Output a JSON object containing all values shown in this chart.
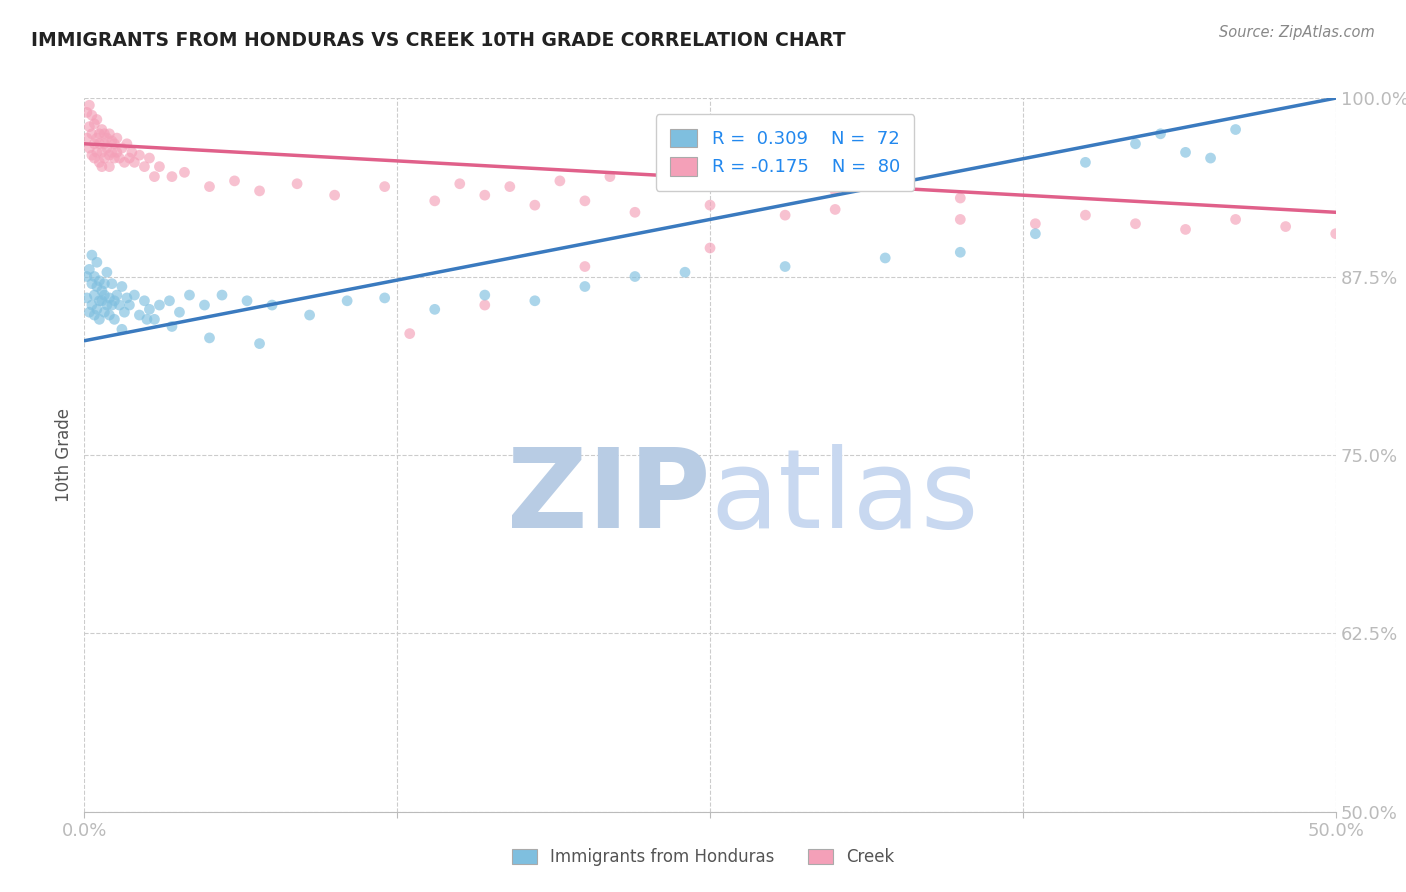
{
  "title": "IMMIGRANTS FROM HONDURAS VS CREEK 10TH GRADE CORRELATION CHART",
  "source": "Source: ZipAtlas.com",
  "ylabel": "10th Grade",
  "y_tick_labels": [
    "50.0%",
    "62.5%",
    "75.0%",
    "87.5%",
    "100.0%"
  ],
  "y_tick_values": [
    0.5,
    0.625,
    0.75,
    0.875,
    1.0
  ],
  "x_range": [
    0.0,
    0.5
  ],
  "y_range": [
    0.5,
    1.0
  ],
  "legend_blue_R": "R = ",
  "legend_blue_Rval": "0.309",
  "legend_blue_N": "N = ",
  "legend_blue_Nval": "72",
  "legend_pink_R": "R = ",
  "legend_pink_Rval": "-0.175",
  "legend_pink_N": "N = ",
  "legend_pink_Nval": "80",
  "blue_color": "#7fbfdf",
  "pink_color": "#f4a0b8",
  "blue_line_color": "#3a7abf",
  "pink_line_color": "#e0608a",
  "marker_size": 60,
  "blue_scatter_alpha": 0.65,
  "pink_scatter_alpha": 0.65,
  "blue_x": [
    0.001,
    0.001,
    0.002,
    0.002,
    0.003,
    0.003,
    0.003,
    0.004,
    0.004,
    0.004,
    0.005,
    0.005,
    0.005,
    0.006,
    0.006,
    0.006,
    0.007,
    0.007,
    0.008,
    0.008,
    0.008,
    0.009,
    0.009,
    0.01,
    0.01,
    0.011,
    0.011,
    0.012,
    0.012,
    0.013,
    0.014,
    0.015,
    0.016,
    0.017,
    0.018,
    0.02,
    0.022,
    0.024,
    0.026,
    0.028,
    0.03,
    0.034,
    0.038,
    0.042,
    0.048,
    0.055,
    0.065,
    0.075,
    0.09,
    0.105,
    0.12,
    0.14,
    0.16,
    0.18,
    0.2,
    0.22,
    0.24,
    0.28,
    0.32,
    0.35,
    0.38,
    0.4,
    0.42,
    0.43,
    0.44,
    0.45,
    0.46,
    0.015,
    0.025,
    0.035,
    0.05,
    0.07
  ],
  "blue_y": [
    0.875,
    0.86,
    0.88,
    0.85,
    0.87,
    0.855,
    0.89,
    0.862,
    0.848,
    0.875,
    0.868,
    0.852,
    0.885,
    0.858,
    0.872,
    0.845,
    0.865,
    0.858,
    0.87,
    0.85,
    0.862,
    0.855,
    0.878,
    0.86,
    0.848,
    0.855,
    0.87,
    0.858,
    0.845,
    0.862,
    0.855,
    0.868,
    0.85,
    0.86,
    0.855,
    0.862,
    0.848,
    0.858,
    0.852,
    0.845,
    0.855,
    0.858,
    0.85,
    0.862,
    0.855,
    0.862,
    0.858,
    0.855,
    0.848,
    0.858,
    0.86,
    0.852,
    0.862,
    0.858,
    0.868,
    0.875,
    0.878,
    0.882,
    0.888,
    0.892,
    0.905,
    0.955,
    0.968,
    0.975,
    0.962,
    0.958,
    0.978,
    0.838,
    0.845,
    0.84,
    0.832,
    0.828
  ],
  "blue_line_x0": 0.0,
  "blue_line_y0": 0.83,
  "blue_line_x1": 0.5,
  "blue_line_y1": 1.0,
  "pink_x": [
    0.001,
    0.001,
    0.002,
    0.002,
    0.002,
    0.003,
    0.003,
    0.003,
    0.004,
    0.004,
    0.004,
    0.005,
    0.005,
    0.005,
    0.006,
    0.006,
    0.006,
    0.007,
    0.007,
    0.007,
    0.008,
    0.008,
    0.008,
    0.009,
    0.009,
    0.01,
    0.01,
    0.01,
    0.011,
    0.011,
    0.012,
    0.012,
    0.013,
    0.013,
    0.014,
    0.015,
    0.016,
    0.017,
    0.018,
    0.019,
    0.02,
    0.022,
    0.024,
    0.026,
    0.028,
    0.03,
    0.035,
    0.04,
    0.05,
    0.06,
    0.07,
    0.085,
    0.1,
    0.12,
    0.14,
    0.16,
    0.18,
    0.2,
    0.22,
    0.25,
    0.28,
    0.3,
    0.35,
    0.38,
    0.4,
    0.42,
    0.44,
    0.46,
    0.48,
    0.5,
    0.13,
    0.16,
    0.2,
    0.25,
    0.3,
    0.35,
    0.15,
    0.17,
    0.19,
    0.21
  ],
  "pink_y": [
    0.972,
    0.99,
    0.965,
    0.98,
    0.995,
    0.96,
    0.975,
    0.988,
    0.968,
    0.982,
    0.958,
    0.972,
    0.985,
    0.962,
    0.975,
    0.955,
    0.968,
    0.978,
    0.962,
    0.952,
    0.968,
    0.975,
    0.958,
    0.965,
    0.972,
    0.96,
    0.975,
    0.952,
    0.962,
    0.97,
    0.958,
    0.968,
    0.962,
    0.972,
    0.958,
    0.965,
    0.955,
    0.968,
    0.958,
    0.962,
    0.955,
    0.96,
    0.952,
    0.958,
    0.945,
    0.952,
    0.945,
    0.948,
    0.938,
    0.942,
    0.935,
    0.94,
    0.932,
    0.938,
    0.928,
    0.932,
    0.925,
    0.928,
    0.92,
    0.925,
    0.918,
    0.922,
    0.915,
    0.912,
    0.918,
    0.912,
    0.908,
    0.915,
    0.91,
    0.905,
    0.835,
    0.855,
    0.882,
    0.895,
    0.935,
    0.93,
    0.94,
    0.938,
    0.942,
    0.945
  ],
  "pink_line_x0": 0.0,
  "pink_line_y0": 0.968,
  "pink_line_x1": 0.5,
  "pink_line_y1": 0.92,
  "watermark_text_1": "ZIP",
  "watermark_text_2": "atlas",
  "watermark_color": "#c8d8ee",
  "watermark_fontsize": 80
}
